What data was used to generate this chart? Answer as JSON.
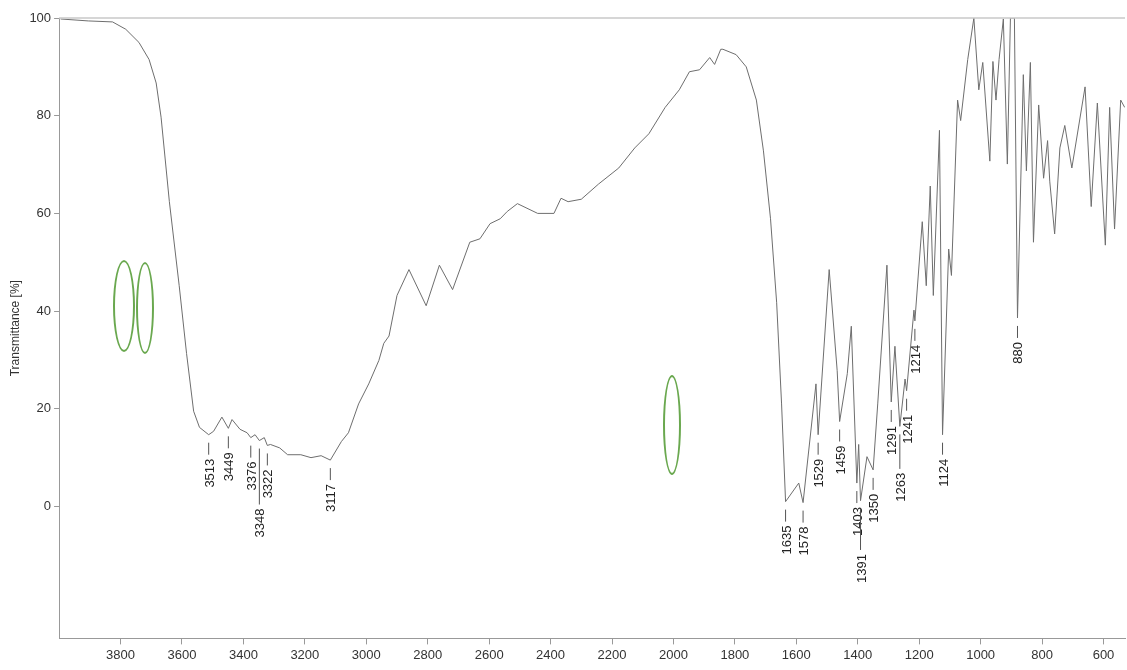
{
  "chart_data": {
    "type": "line",
    "ylabel": "Transmittance [%]",
    "xlim": [
      4000,
      530
    ],
    "xticks": [
      3800,
      3600,
      3400,
      3200,
      3000,
      2800,
      2600,
      2400,
      2200,
      2000,
      1800,
      1600,
      1400,
      1200,
      1000,
      800,
      600
    ],
    "ylim": [
      -27,
      100
    ],
    "yticks": [
      0,
      20,
      40,
      60,
      80,
      100
    ],
    "marker": "none",
    "line_style": "solid",
    "series": [
      {
        "color": "#6e6e6e",
        "x": [
          3995,
          3905,
          3826,
          3783,
          3740,
          3707,
          3684,
          3668,
          3641,
          3609,
          3585,
          3562,
          3543,
          3513,
          3497,
          3470,
          3449,
          3437,
          3411,
          3388,
          3376,
          3362,
          3348,
          3332,
          3322,
          3312,
          3282,
          3256,
          3213,
          3180,
          3147,
          3117,
          3081,
          3058,
          3025,
          2992,
          2959,
          2943,
          2926,
          2900,
          2861,
          2805,
          2762,
          2719,
          2663,
          2630,
          2597,
          2564,
          2541,
          2508,
          2442,
          2389,
          2366,
          2343,
          2300,
          2244,
          2178,
          2126,
          2080,
          2027,
          1981,
          1948,
          1915,
          1882,
          1866,
          1846,
          1839,
          1796,
          1763,
          1730,
          1707,
          1684,
          1664,
          1648,
          1635,
          1592,
          1578,
          1536,
          1529,
          1493,
          1467,
          1459,
          1434,
          1421,
          1403,
          1397,
          1391,
          1370,
          1350,
          1335,
          1305,
          1291,
          1279,
          1263,
          1246,
          1241,
          1217,
          1214,
          1190,
          1177,
          1164,
          1154,
          1134,
          1124,
          1104,
          1095,
          1075,
          1065,
          1042,
          1022,
          1006,
          993,
          970,
          960,
          950,
          940,
          926,
          913,
          903,
          890,
          880,
          861,
          851,
          838,
          828,
          811,
          795,
          782,
          775,
          759,
          742,
          726,
          703,
          660,
          640,
          620,
          594,
          580,
          564,
          544,
          531
        ],
        "values": [
          99.8,
          99.4,
          99.2,
          97.7,
          95,
          91.5,
          86.7,
          79.7,
          62.4,
          45.2,
          31.3,
          19.5,
          16.2,
          14.7,
          15.4,
          18.3,
          16,
          17.8,
          15.8,
          15.1,
          14.1,
          14.7,
          13.5,
          14.1,
          12.5,
          12.7,
          12,
          10.6,
          10.6,
          10,
          10.4,
          9.5,
          13.3,
          15.1,
          21,
          25.1,
          29.9,
          33.4,
          34.9,
          43.2,
          48.5,
          41.1,
          49.4,
          44.4,
          54.1,
          54.8,
          57.9,
          58.9,
          60.4,
          62,
          60,
          60,
          63.1,
          62.4,
          62.9,
          66,
          69.3,
          73.4,
          76.3,
          81.7,
          85.3,
          89,
          89.4,
          91.9,
          90.5,
          93.6,
          93.6,
          92.5,
          90,
          83.2,
          72.8,
          58.9,
          41.7,
          21,
          1,
          4.8,
          0.8,
          25.1,
          14.7,
          48.5,
          27.8,
          17.4,
          27.2,
          36.9,
          4.8,
          12.7,
          1.2,
          10.2,
          7.5,
          21,
          49.4,
          21.4,
          32.8,
          16.4,
          26.1,
          23.7,
          40.2,
          38,
          58.3,
          45.2,
          65.6,
          43.2,
          77,
          14.7,
          52.7,
          47.3,
          83.2,
          79,
          91.5,
          100,
          85.3,
          90.9,
          70.7,
          91.1,
          83.2,
          91.5,
          99.8,
          70.1,
          100,
          100,
          38.6,
          88.4,
          68.7,
          90.9,
          54.1,
          82.2,
          67.2,
          74.9,
          66.6,
          55.8,
          73.4,
          78,
          69.3,
          85.9,
          61.4,
          82.6,
          53.5,
          81.7,
          56.8,
          83.2,
          81.7
        ]
      }
    ],
    "annotations": [
      {
        "text": "3513",
        "x": 3513,
        "y": 14.7
      },
      {
        "text": "3449",
        "x": 3449,
        "y": 16
      },
      {
        "text": "3376",
        "x": 3376,
        "y": 14.1
      },
      {
        "text": "3348",
        "x": 3348,
        "y": 13.5
      },
      {
        "text": "3322",
        "x": 3322,
        "y": 12.5
      },
      {
        "text": "3117",
        "x": 3117,
        "y": 9.5
      },
      {
        "text": "1635",
        "x": 1635,
        "y": 1
      },
      {
        "text": "1578",
        "x": 1578,
        "y": 0.8
      },
      {
        "text": "1529",
        "x": 1529,
        "y": 14.7
      },
      {
        "text": "1459",
        "x": 1459,
        "y": 17.4
      },
      {
        "text": "1403",
        "x": 1403,
        "y": 4.8
      },
      {
        "text": "1391",
        "x": 1391,
        "y": 1.2
      },
      {
        "text": "1350",
        "x": 1350,
        "y": 7.5
      },
      {
        "text": "1291",
        "x": 1291,
        "y": 21.4
      },
      {
        "text": "1263",
        "x": 1263,
        "y": 16.4
      },
      {
        "text": "1241",
        "x": 1241,
        "y": 23.7
      },
      {
        "text": "1214",
        "x": 1214,
        "y": 38
      },
      {
        "text": "1124",
        "x": 1124,
        "y": 14.7
      },
      {
        "text": "880",
        "x": 880,
        "y": 38.6
      }
    ]
  }
}
